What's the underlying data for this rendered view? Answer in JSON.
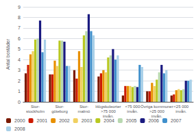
{
  "chart_data": {
    "type": "bar",
    "ylabel": "Antal bostäder",
    "categories": [
      "Stor-\nstockholm",
      "Stor-\ngöteborg",
      "Stor-\nmalmö",
      "Högskoleorter\n>75 000\ninvån.",
      "<75 000\ninvån.",
      "Övriga kommuner\n>25 000\ninvån.",
      "<25 000\ninvån."
    ],
    "series": [
      {
        "name": "2000",
        "color": "#7B1A00",
        "values": [
          2.7,
          2.6,
          3.0,
          2.4,
          0.6,
          1.0,
          0.6
        ]
      },
      {
        "name": "2001",
        "color": "#CC1A00",
        "values": [
          3.5,
          2.6,
          2.2,
          2.7,
          1.5,
          1.0,
          0.7
        ]
      },
      {
        "name": "2002",
        "color": "#E89000",
        "values": [
          4.5,
          3.9,
          4.8,
          3.0,
          1.5,
          1.8,
          1.1
        ]
      },
      {
        "name": "2003",
        "color": "#F0D060",
        "values": [
          4.8,
          3.4,
          3.3,
          2.8,
          1.5,
          1.5,
          1.2
        ]
      },
      {
        "name": "2004",
        "color": "#B8C820",
        "values": [
          5.9,
          5.8,
          6.3,
          4.2,
          1.4,
          2.1,
          1.1
        ]
      },
      {
        "name": "2005",
        "color": "#B8D8B0",
        "values": [
          6.0,
          5.8,
          6.7,
          4.4,
          1.5,
          2.8,
          1.2
        ]
      },
      {
        "name": "2006",
        "color": "#1A1A80",
        "values": [
          7.7,
          5.7,
          8.3,
          5.0,
          1.4,
          3.5,
          2.0
        ]
      },
      {
        "name": "2007",
        "color": "#4090CC",
        "values": [
          4.7,
          3.4,
          6.7,
          4.0,
          3.5,
          2.7,
          2.0
        ]
      },
      {
        "name": "2008",
        "color": "#A8D0E8",
        "values": [
          5.9,
          3.4,
          6.3,
          4.4,
          3.3,
          3.0,
          2.1
        ]
      }
    ],
    "ylim": [
      0,
      9
    ],
    "yticks": [
      0,
      1,
      2,
      3,
      4,
      5,
      6,
      7,
      8,
      9
    ],
    "grid": true,
    "legend": "bottom"
  }
}
